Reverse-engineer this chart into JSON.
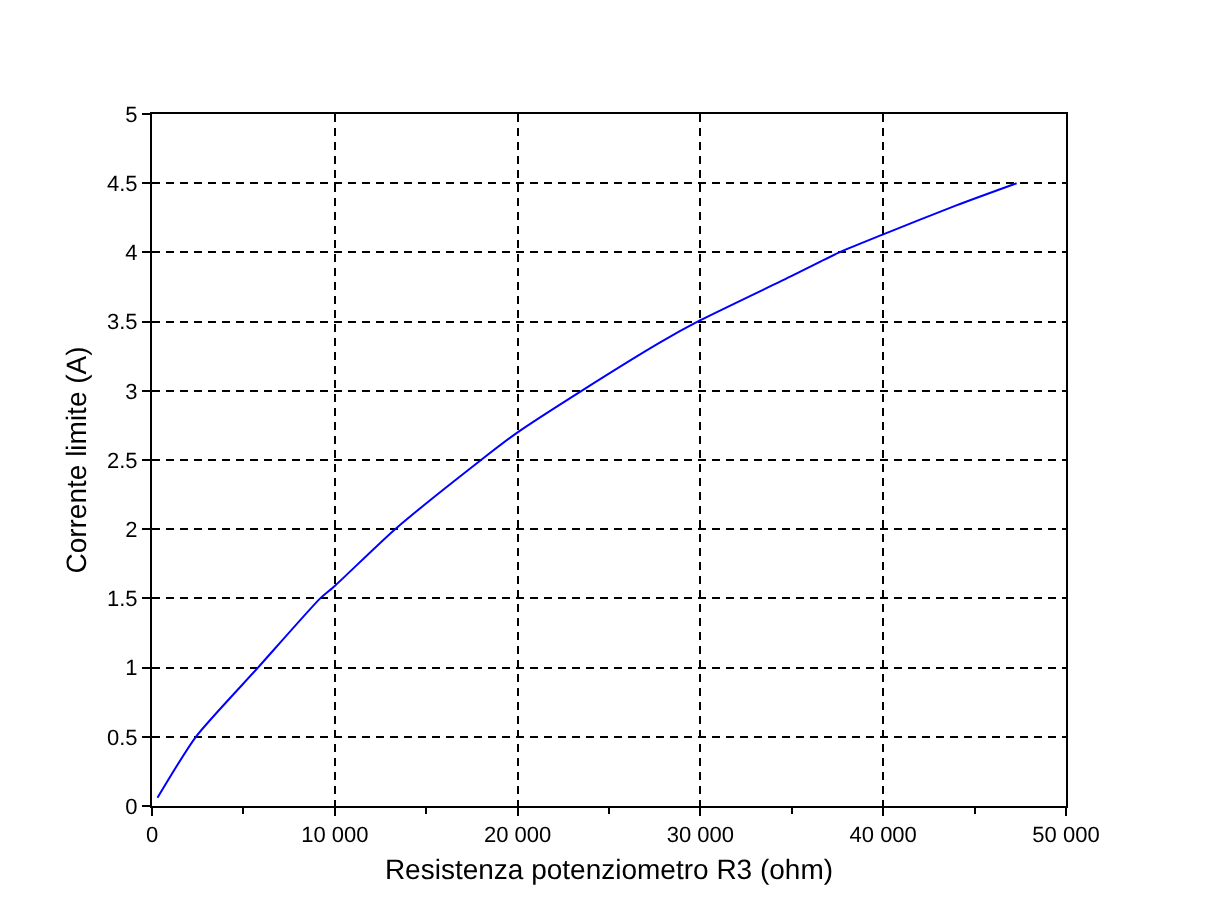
{
  "chart_data": {
    "type": "line",
    "xlabel": "Resistenza potenziometro R3 (ohm)",
    "ylabel": "Corrente limite (A)",
    "x": [
      300,
      2400,
      5800,
      9200,
      10000,
      13300,
      18000,
      20000,
      23500,
      27800,
      30000,
      35000,
      37600,
      40000,
      44000,
      47300
    ],
    "series": [
      {
        "color": "#0000ff",
        "values": [
          0.06,
          0.5,
          1,
          1.5,
          1.59,
          2,
          2.5,
          2.7,
          3,
          3.35,
          3.51,
          3.83,
          4,
          4.13,
          4.34,
          4.5
        ]
      }
    ],
    "xlim": [
      0,
      50000
    ],
    "xticks": [
      0,
      {
        "value": 5000,
        "label": null
      },
      {
        "value": 10000,
        "label": "10 000"
      },
      {
        "value": 15000,
        "label": null
      },
      {
        "value": 20000,
        "label": "20 000"
      },
      {
        "value": 25000,
        "label": null
      },
      {
        "value": 30000,
        "label": "30 000"
      },
      {
        "value": 35000,
        "label": null
      },
      {
        "value": 40000,
        "label": "40 000"
      },
      {
        "value": 45000,
        "label": null
      },
      {
        "value": 50000,
        "label": "50 000"
      }
    ],
    "ylim": [
      0,
      5
    ],
    "yticks": [
      0,
      0.5,
      1,
      1.5,
      2,
      2.5,
      3,
      3.5,
      4,
      4.5,
      5
    ],
    "grid": true,
    "marker": "none",
    "line_style": "solid"
  }
}
